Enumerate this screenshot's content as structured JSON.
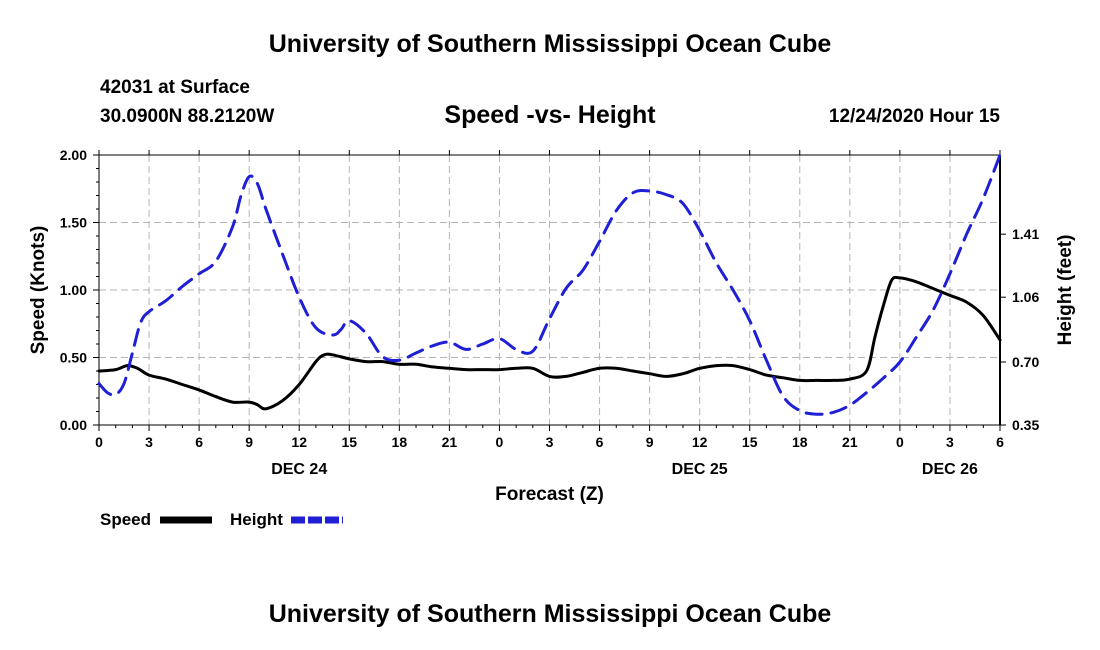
{
  "header": {
    "top_title": "University of Southern Mississippi Ocean Cube",
    "station": "42031 at Surface",
    "coords": "30.0900N 88.2120W",
    "chart_title": "Speed -vs- Height",
    "date_hour": "12/24/2020 Hour 15",
    "bottom_title": "University of Southern Mississippi Ocean Cube"
  },
  "chart_data": {
    "type": "line",
    "title": "Speed -vs- Height",
    "xlabel": "Forecast (Z)",
    "ylabel": "Speed (Knots)",
    "y2label": "Height (feet)",
    "xlim": [
      0,
      54
    ],
    "ylim": [
      0,
      2
    ],
    "y2lim": [
      0.35,
      1.85
    ],
    "yticks": [
      0,
      0.5,
      1.0,
      1.5,
      2.0
    ],
    "ytick_labels": [
      "0.00",
      "0.50",
      "1.00",
      "1.50",
      "2.00"
    ],
    "y2ticks": [
      0.35,
      0.7,
      1.06,
      1.41
    ],
    "y2tick_labels": [
      "0.35",
      "0.70",
      "1.06",
      "1.41"
    ],
    "xticks": [
      0,
      3,
      6,
      9,
      12,
      15,
      18,
      21,
      24,
      27,
      30,
      33,
      36,
      39,
      42,
      45,
      48,
      51,
      54
    ],
    "xtick_labels": [
      "0",
      "3",
      "6",
      "9",
      "12",
      "15",
      "18",
      "21",
      "0",
      "3",
      "6",
      "9",
      "12",
      "15",
      "18",
      "21",
      "0",
      "3",
      "6"
    ],
    "day_labels": [
      {
        "hour": 12,
        "text": "DEC 24"
      },
      {
        "hour": 36,
        "text": "DEC 25"
      },
      {
        "hour": 51,
        "text": "DEC 26"
      }
    ],
    "grid": true,
    "legend_position": "bottom-left",
    "series": [
      {
        "name": "Speed",
        "axis": "left",
        "color": "#000000",
        "style": "solid",
        "x": [
          0,
          1,
          1.7,
          2.3,
          3,
          4,
          5,
          6,
          7,
          8,
          9,
          9.5,
          10,
          11,
          12,
          13,
          13.5,
          14,
          15,
          16,
          17,
          18,
          19,
          20,
          21,
          22,
          23,
          24,
          25,
          26,
          27,
          28,
          29,
          30,
          31,
          32,
          33,
          34,
          35,
          36,
          37,
          38,
          39,
          40,
          41,
          42,
          43,
          44,
          45,
          46,
          46.5,
          47,
          47.5,
          48,
          49,
          50,
          51,
          52,
          53,
          54
        ],
        "values": [
          0.4,
          0.41,
          0.44,
          0.42,
          0.37,
          0.34,
          0.3,
          0.26,
          0.21,
          0.17,
          0.17,
          0.15,
          0.12,
          0.18,
          0.3,
          0.47,
          0.52,
          0.52,
          0.49,
          0.47,
          0.47,
          0.45,
          0.45,
          0.43,
          0.42,
          0.41,
          0.41,
          0.41,
          0.42,
          0.42,
          0.36,
          0.36,
          0.39,
          0.42,
          0.42,
          0.4,
          0.38,
          0.36,
          0.38,
          0.42,
          0.44,
          0.44,
          0.41,
          0.37,
          0.35,
          0.33,
          0.33,
          0.33,
          0.34,
          0.4,
          0.65,
          0.88,
          1.07,
          1.09,
          1.06,
          1.01,
          0.96,
          0.91,
          0.81,
          0.63
        ]
      },
      {
        "name": "Height",
        "axis": "right",
        "color": "#1f1fd6",
        "style": "dashed",
        "x": [
          0,
          0.5,
          1,
          1.5,
          2,
          2.5,
          3,
          4,
          5,
          6,
          7,
          8,
          8.5,
          9,
          9.5,
          10,
          11,
          12,
          13,
          14,
          14.5,
          15,
          16,
          17,
          18,
          19,
          20,
          21,
          22,
          23,
          24,
          25,
          26,
          27,
          28,
          29,
          30,
          31,
          32,
          33,
          34,
          35,
          36,
          37,
          38,
          39,
          40,
          41,
          42,
          43,
          44,
          45,
          46,
          47,
          48,
          49,
          50,
          51,
          52,
          53,
          54
        ],
        "values": [
          0.58,
          0.53,
          0.52,
          0.58,
          0.75,
          0.92,
          0.98,
          1.04,
          1.12,
          1.19,
          1.26,
          1.45,
          1.62,
          1.73,
          1.69,
          1.55,
          1.3,
          1.06,
          0.89,
          0.85,
          0.88,
          0.93,
          0.86,
          0.73,
          0.71,
          0.75,
          0.79,
          0.81,
          0.77,
          0.8,
          0.83,
          0.77,
          0.76,
          0.94,
          1.11,
          1.21,
          1.37,
          1.54,
          1.64,
          1.65,
          1.63,
          1.58,
          1.43,
          1.25,
          1.1,
          0.93,
          0.71,
          0.51,
          0.43,
          0.41,
          0.42,
          0.46,
          0.53,
          0.61,
          0.7,
          0.84,
          0.99,
          1.19,
          1.41,
          1.61,
          1.85
        ]
      }
    ]
  }
}
